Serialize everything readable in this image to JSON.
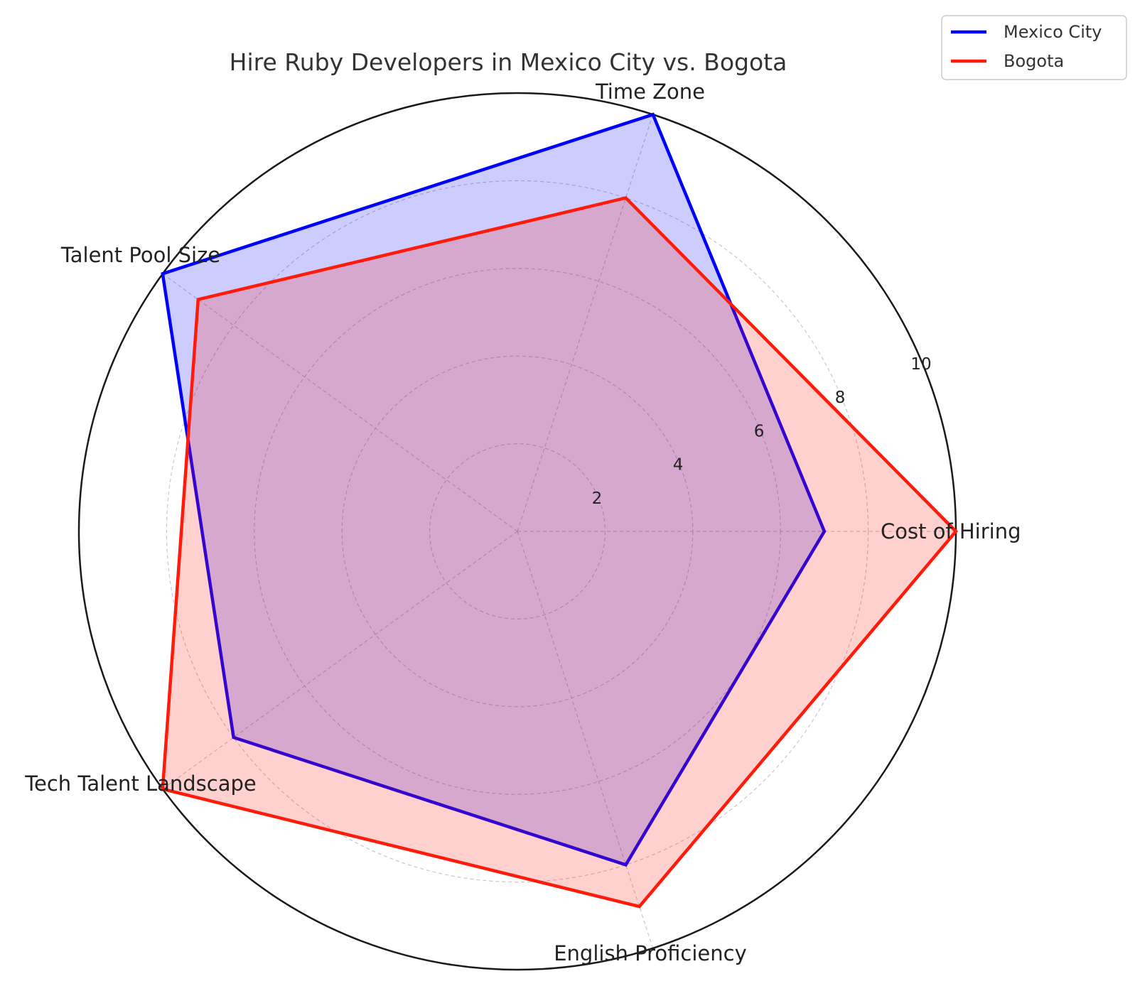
{
  "chart_data": {
    "type": "radar",
    "title": "Hire Ruby Developers in Mexico City vs. Bogota",
    "categories": [
      "Cost of Hiring",
      "Time Zone",
      "Talent Pool Size",
      "Tech Talent Landscape",
      "English Proficiency"
    ],
    "rlim": [
      0,
      10
    ],
    "rticks": [
      2,
      4,
      6,
      8,
      10
    ],
    "grid": true,
    "legend_position": "top-right",
    "series": [
      {
        "name": "Mexico City",
        "values": [
          7,
          10,
          10,
          8,
          8
        ],
        "color": "#0000ff"
      },
      {
        "name": "Bogota",
        "values": [
          10,
          8,
          9,
          10,
          9
        ],
        "color": "#ff1a0a"
      }
    ]
  }
}
